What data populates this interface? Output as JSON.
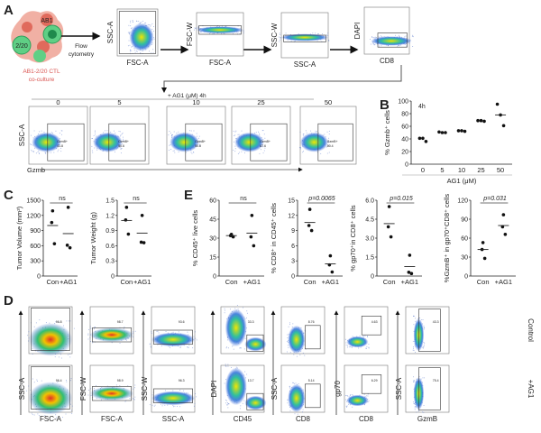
{
  "panel_labels": {
    "a": "A",
    "b": "B",
    "c": "C",
    "d": "D",
    "e": "E"
  },
  "panel_a": {
    "cartoon": {
      "ab1": "AB1",
      "cell": "2/20",
      "caption_line1": "AB1-2/20 CTL",
      "caption_line2": "co-culture"
    },
    "flow_label": {
      "line1": "Flow",
      "line2": "cytometry"
    },
    "gating": [
      {
        "x_label": "FSC-A",
        "y_label": "SSC-A"
      },
      {
        "x_label": "FSC-A",
        "y_label": "FSC-W"
      },
      {
        "x_label": "SSC-A",
        "y_label": "SSC-W"
      },
      {
        "x_label": "CD8",
        "y_label": "DAPI"
      }
    ],
    "treatment": "+ AG1 (μM) 4h",
    "dose_y_label": "SSC-A",
    "dose_x_label": "Gzmb",
    "doses": [
      {
        "title": "0",
        "gate_name": "GzmB+",
        "value": "41.8"
      },
      {
        "title": "5",
        "gate_name": "GzmB+",
        "value": "50.6"
      },
      {
        "title": "10",
        "gate_name": "GzmB+",
        "value": "50.8"
      },
      {
        "title": "25",
        "gate_name": "GzmB+",
        "value": "67.6"
      },
      {
        "title": "50",
        "gate_name": "GzmB+",
        "value": "80.4"
      }
    ]
  },
  "panel_d": {
    "row_labels": [
      "Control",
      "+AG1"
    ],
    "columns": [
      {
        "x_label": "FSC-A",
        "y_label": "SSC-A",
        "gates": [
          "96.8",
          "96.4"
        ]
      },
      {
        "x_label": "FSC-A",
        "y_label": "FSC-W",
        "gates": [
          "98.7",
          "98.9"
        ]
      },
      {
        "x_label": "SSC-A",
        "y_label": "SSC-W",
        "gates": [
          "93.6",
          "96.3"
        ]
      },
      {
        "x_label": "CD45",
        "y_label": "DAPI",
        "gates": [
          "33.3",
          "13.7"
        ]
      },
      {
        "x_label": "CD8",
        "y_label": "SSC-A",
        "gates": [
          "8.76",
          "5.14"
        ]
      },
      {
        "x_label": "CD8",
        "y_label": "gp70",
        "gates": [
          "4.63",
          "6.29"
        ]
      },
      {
        "x_label": "GzmB",
        "y_label": "SSC-A",
        "gates": [
          "43.3",
          "75.4"
        ]
      }
    ]
  },
  "colors": {
    "density_high": "#f2e600",
    "density_mid": "#2fbf71",
    "density_low": "#2a5bd7",
    "cell_red": "#e8796a",
    "cell_green": "#3dbb6b",
    "caption": "#d9534f"
  },
  "chart_data": [
    {
      "id": "B",
      "type": "scatter",
      "annotation": "4h",
      "xlabel": "AG1 (μM)",
      "ylabel": "% Gzmb⁺ cells",
      "categories": [
        "0",
        "5",
        "10",
        "25",
        "50"
      ],
      "ylim": [
        0,
        100
      ],
      "yticks": [
        "0",
        "20",
        "40",
        "60",
        "80",
        "100"
      ],
      "groups": [
        [
          41,
          41,
          36
        ],
        [
          51,
          50,
          50
        ],
        [
          53,
          53,
          52
        ],
        [
          69,
          69,
          68
        ],
        [
          95,
          78,
          61
        ]
      ],
      "means": [
        null,
        null,
        null,
        null,
        78
      ]
    },
    {
      "id": "C1",
      "type": "scatter",
      "annotation": "ns",
      "xlabel": "",
      "ylabel": "Tumor Volume (mm³)",
      "categories": [
        "Con",
        "+AG1"
      ],
      "ylim": [
        0,
        1500
      ],
      "yticks": [
        "0",
        "300",
        "600",
        "900",
        "1200",
        "1500"
      ],
      "groups": [
        [
          1290,
          1060,
          640
        ],
        [
          1360,
          610,
          560
        ]
      ],
      "means": [
        1000,
        840
      ]
    },
    {
      "id": "C2",
      "type": "scatter",
      "annotation": "ns",
      "xlabel": "",
      "ylabel": "Tumor Weight (g)",
      "categories": [
        "Con",
        "+AG1"
      ],
      "ylim": [
        0,
        1.5
      ],
      "yticks": [
        "0",
        "0.3",
        "0.6",
        "0.9",
        "1.2",
        "1.5"
      ],
      "groups": [
        [
          1.36,
          1.11,
          0.83
        ],
        [
          1.2,
          0.67,
          0.66
        ]
      ],
      "means": [
        1.1,
        0.85
      ]
    },
    {
      "id": "E1",
      "type": "scatter",
      "annotation": "ns",
      "xlabel": "",
      "ylabel": "% CD45⁺ live cells",
      "categories": [
        "Con",
        "+AG1"
      ],
      "ylim": [
        0,
        60
      ],
      "yticks": [
        "0",
        "15",
        "30",
        "45",
        "60"
      ],
      "groups": [
        [
          33,
          32,
          31
        ],
        [
          48,
          31,
          24
        ]
      ],
      "means": [
        32,
        34
      ]
    },
    {
      "id": "E2",
      "type": "scatter",
      "annotation": "p=0.0065",
      "xlabel": "",
      "ylabel": "% CD8⁺ in CD45⁺ cells",
      "categories": [
        "Con",
        "+AG1"
      ],
      "ylim": [
        0,
        15
      ],
      "yticks": [
        "0",
        "3",
        "6",
        "9",
        "12",
        "15"
      ],
      "groups": [
        [
          13.2,
          10,
          9
        ],
        [
          4,
          2.2,
          0.8
        ]
      ],
      "means": [
        10.6,
        2.4
      ]
    },
    {
      "id": "E3",
      "type": "scatter",
      "annotation": "p=0.015",
      "xlabel": "",
      "ylabel": "% gp70⁺in CD8⁺ cells",
      "categories": [
        "Con",
        "+AG1"
      ],
      "ylim": [
        0,
        6
      ],
      "yticks": [
        "0",
        "1.5",
        "3.0",
        "4.5",
        "6.0"
      ],
      "groups": [
        [
          5.5,
          3.9,
          3.1
        ],
        [
          1.65,
          0.3,
          0.2
        ]
      ],
      "means": [
        4.15,
        0.75
      ]
    },
    {
      "id": "E4",
      "type": "scatter",
      "annotation": "p=0.031",
      "xlabel": "",
      "ylabel": "%GzmB⁺ in gp70⁺CD8⁺ cells",
      "categories": [
        "Con",
        "+AG1"
      ],
      "ylim": [
        0,
        120
      ],
      "yticks": [
        "0",
        "30",
        "60",
        "90",
        "120"
      ],
      "groups": [
        [
          53,
          42,
          28
        ],
        [
          97,
          78,
          66
        ]
      ],
      "means": [
        42,
        80
      ]
    }
  ]
}
